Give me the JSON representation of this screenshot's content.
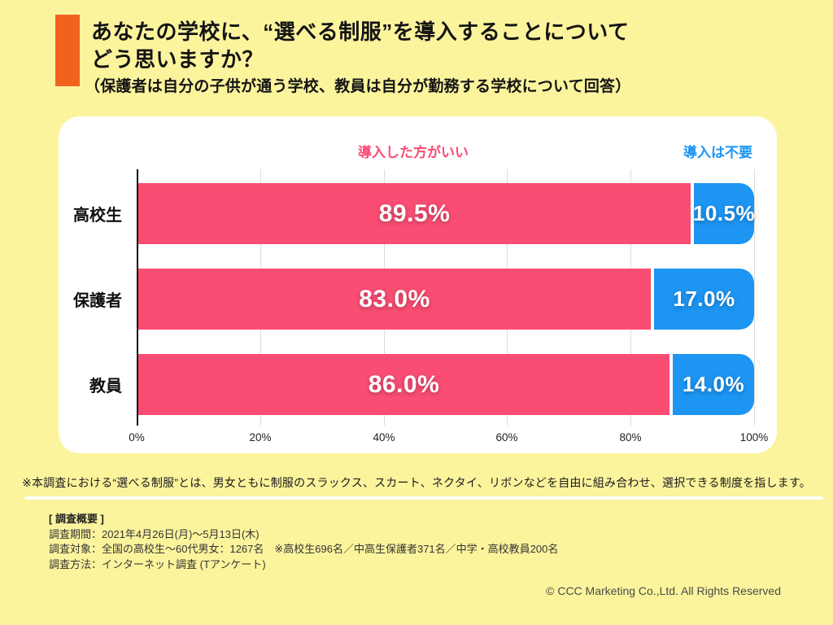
{
  "colors": {
    "background": "#FCF49D",
    "accent_orange": "#F2621F",
    "favor_pink": "#FA4D73",
    "against_blue": "#1D95F3",
    "card_white": "#FFFFFF"
  },
  "header": {
    "title_line1": "あなたの学校に、“選べる制服”を導入することについて",
    "title_line2": "どう思いますか？",
    "subtitle": "（保護者は自分の子供が通う学校、教員は自分が勤務する学校について回答）"
  },
  "chart_data": {
    "type": "bar",
    "orientation": "horizontal",
    "stacked": true,
    "categories": [
      "高校生",
      "保護者",
      "教員"
    ],
    "series": [
      {
        "name": "導入した方がいい",
        "color": "#FA4D73",
        "values": [
          89.5,
          83.0,
          86.0
        ]
      },
      {
        "name": "導入は不要",
        "color": "#1D95F3",
        "values": [
          10.5,
          17.0,
          14.0
        ]
      }
    ],
    "value_labels": [
      [
        "89.5%",
        "10.5%"
      ],
      [
        "83.0%",
        "17.0%"
      ],
      [
        "86.0%",
        "14.0%"
      ]
    ],
    "x_ticks": [
      "0%",
      "20%",
      "40%",
      "60%",
      "80%",
      "100%"
    ],
    "xlim": [
      0,
      100
    ],
    "grid": true,
    "legend_position": "top"
  },
  "footnote": "※本調査における“選べる制服”とは、男女ともに制服のスラックス、スカート、ネクタイ、リボンなどを自由に組み合わせ、選択できる制度を指します。",
  "survey": {
    "heading": "[ 調査概要 ]",
    "lines": [
      "調査期間：2021年4月26日(月)～5月13日(木)",
      "調査対象：全国の高校生～60代男女：1267名　※高校生696名／中高生保護者371名／中学・高校教員200名",
      "調査方法：インターネット調査 (Tアンケート)"
    ]
  },
  "copyright": "© CCC Marketing Co.,Ltd. All Rights Reserved"
}
